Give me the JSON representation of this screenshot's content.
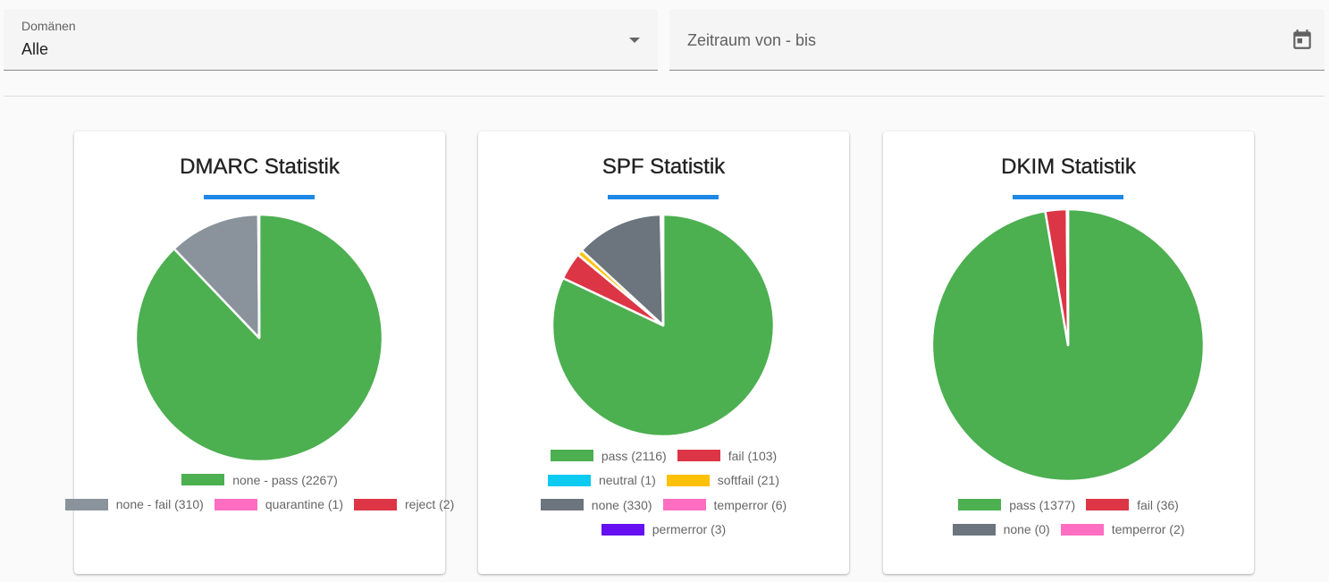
{
  "filters": {
    "domain_label": "Domänen",
    "domain_value": "Alle",
    "date_placeholder": "Zeitraum von - bis",
    "calendar_icon": "calendar-icon",
    "dropdown_icon": "chevron-down-icon"
  },
  "accent_color": "#1e88e5",
  "chart_data": [
    {
      "type": "pie",
      "title": "DMARC Statistik",
      "slices": [
        {
          "label": "none - pass",
          "value": 2267,
          "legend": "none - pass (2267)",
          "color": "#4caf50"
        },
        {
          "label": "none - fail",
          "value": 310,
          "legend": "none - fail (310)",
          "color": "#8a939c"
        },
        {
          "label": "quarantine",
          "value": 1,
          "legend": "quarantine (1)",
          "color": "#ff6ec0"
        },
        {
          "label": "reject",
          "value": 2,
          "legend": "reject (2)",
          "color": "#dc3545"
        }
      ]
    },
    {
      "type": "pie",
      "title": "SPF Statistik",
      "slices": [
        {
          "label": "pass",
          "value": 2116,
          "legend": "pass (2116)",
          "color": "#4caf50"
        },
        {
          "label": "fail",
          "value": 103,
          "legend": "fail (103)",
          "color": "#dc3545"
        },
        {
          "label": "neutral",
          "value": 1,
          "legend": "neutral (1)",
          "color": "#0dcaf0"
        },
        {
          "label": "softfail",
          "value": 21,
          "legend": "softfail (21)",
          "color": "#ffc107"
        },
        {
          "label": "none",
          "value": 330,
          "legend": "none (330)",
          "color": "#6c757d"
        },
        {
          "label": "temperror",
          "value": 6,
          "legend": "temperror (6)",
          "color": "#ff6ec0"
        },
        {
          "label": "permerror",
          "value": 3,
          "legend": "permerror (3)",
          "color": "#6610f2"
        }
      ]
    },
    {
      "type": "pie",
      "title": "DKIM Statistik",
      "slices": [
        {
          "label": "pass",
          "value": 1377,
          "legend": "pass (1377)",
          "color": "#4caf50"
        },
        {
          "label": "fail",
          "value": 36,
          "legend": "fail (36)",
          "color": "#dc3545"
        },
        {
          "label": "none",
          "value": 0,
          "legend": "none (0)",
          "color": "#6c757d"
        },
        {
          "label": "temperror",
          "value": 2,
          "legend": "temperror (2)",
          "color": "#ff6ec0"
        }
      ]
    }
  ]
}
